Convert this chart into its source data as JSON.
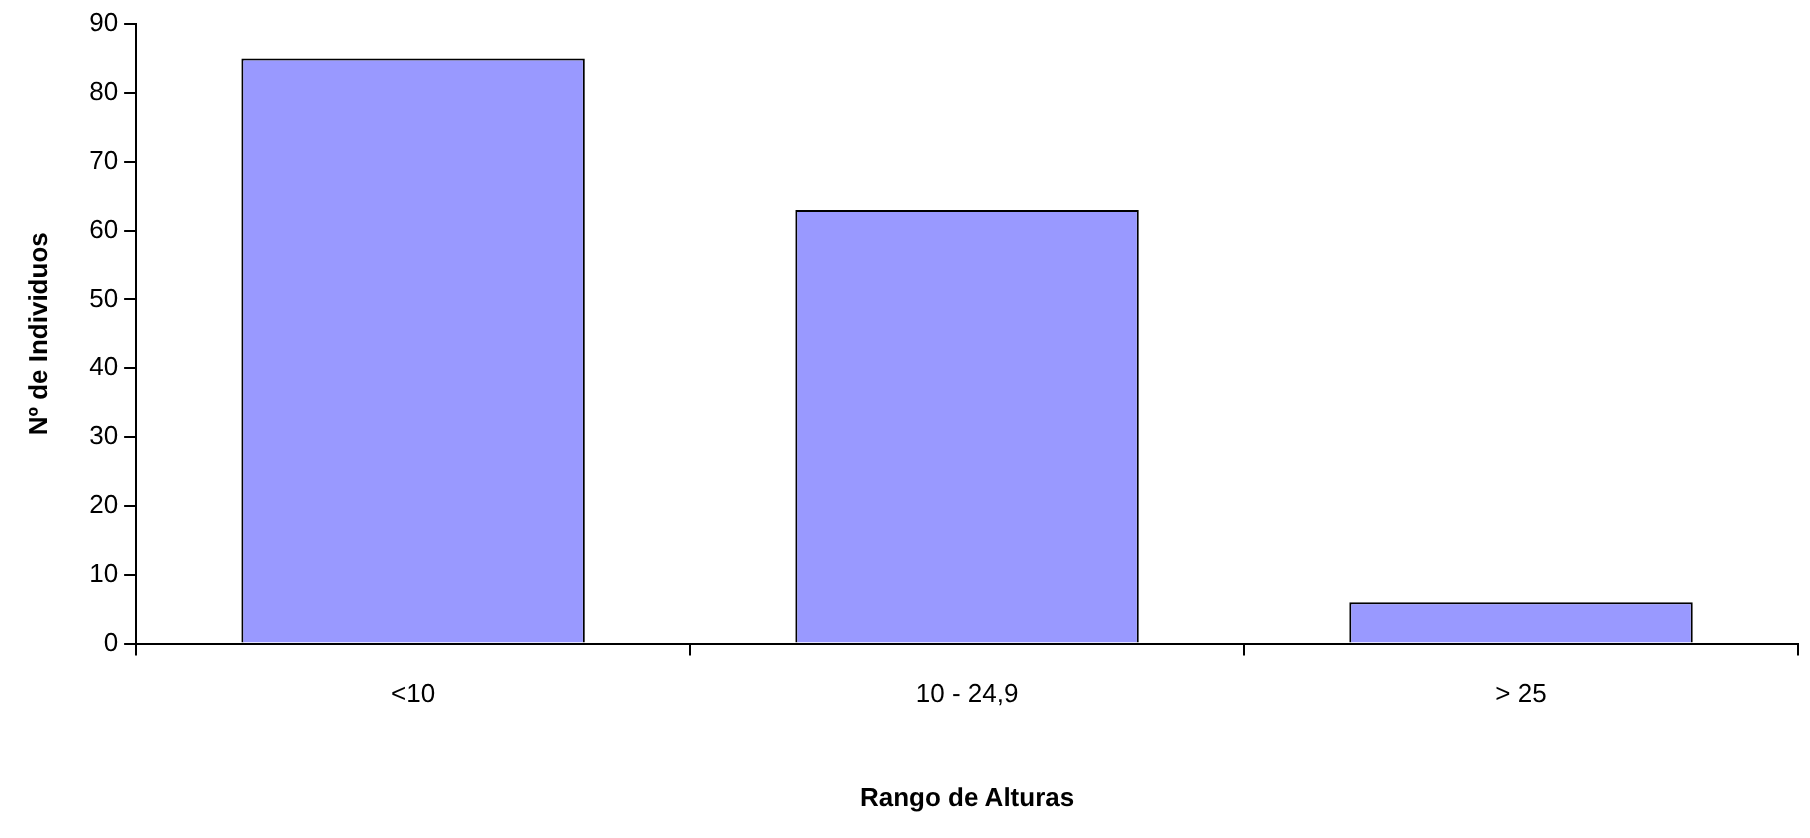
{
  "chart_data": {
    "type": "bar",
    "xlabel": "Rango de Alturas",
    "ylabel": "Nº de Individuos",
    "categories": [
      "<10",
      "10 - 24,9",
      "> 25"
    ],
    "values": [
      85,
      63,
      6
    ],
    "color": "#9999ff",
    "ylim": [
      0,
      90
    ],
    "yticks": [
      0,
      10,
      20,
      30,
      40,
      50,
      60,
      70,
      80,
      90
    ],
    "grid": false,
    "legend": false
  }
}
